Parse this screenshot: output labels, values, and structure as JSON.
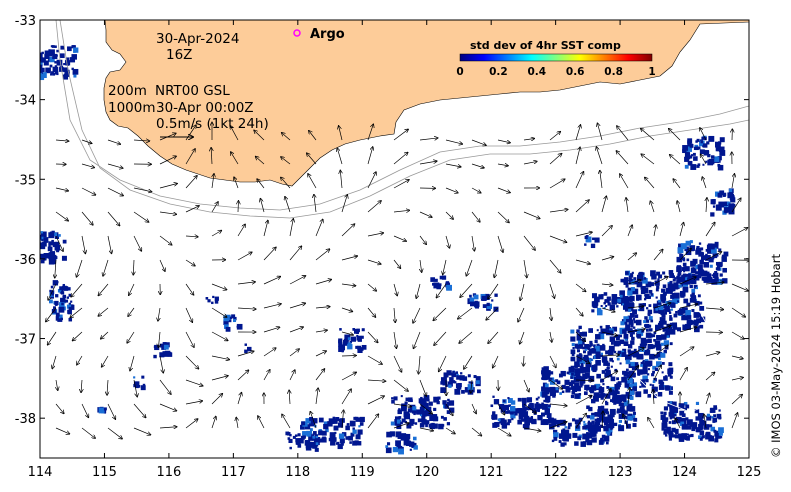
{
  "map": {
    "date": "30-Apr-2024",
    "hour": "16Z",
    "depth_label": "200m",
    "product_label": "NRT00 GSL",
    "depth_label2": "1000m",
    "velocity_time": "30-Apr 00:00Z",
    "vector_scale_label": "0.5m/s (1kt 24h)",
    "argo_label": "Argo",
    "credit": "© IMOS 03-May-2024 15:19 Hobart"
  },
  "colorbar": {
    "title": "std dev of 4hr SST comp",
    "ticks": [
      "0",
      "0.2",
      "0.4",
      "0.6",
      "0.8",
      "1"
    ],
    "colors": [
      "#00007f",
      "#0000ff",
      "#0080ff",
      "#00ffff",
      "#80ff80",
      "#ffff00",
      "#ff8000",
      "#ff0000",
      "#7f0000"
    ]
  },
  "axes": {
    "x_ticks": [
      "114",
      "115",
      "116",
      "117",
      "118",
      "119",
      "120",
      "121",
      "122",
      "123",
      "124",
      "125"
    ],
    "y_ticks": [
      "-33",
      "-34",
      "-35",
      "-36",
      "-37",
      "-38"
    ],
    "xlim": [
      114,
      125
    ],
    "ylim": [
      -38.5,
      -33
    ]
  },
  "colors": {
    "land": "#fdcc99",
    "sst_patch": "#00168f",
    "argo_marker": "#ff00ff",
    "isobath": "#999999"
  }
}
